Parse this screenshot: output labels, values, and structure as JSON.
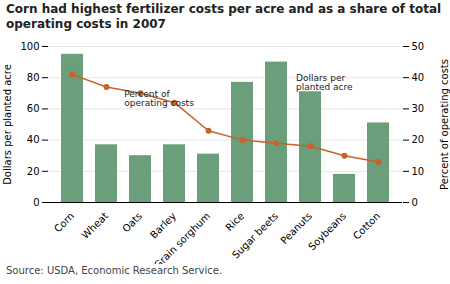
{
  "chart_data": {
    "type": "bar",
    "title": "Corn had highest fertilizer costs per acre and as a share of total\noperating costs in 2007",
    "caption": "Source:  USDA, Economic Research Service.",
    "categories": [
      "Corn",
      "Wheat",
      "Oats",
      "Barley",
      "Grain sorghum",
      "Rice",
      "Sugar beets",
      "Peanuts",
      "Soybeans",
      "Cotton"
    ],
    "series": [
      {
        "type": "bar",
        "color": "#6b9e7a",
        "values": [
          95,
          37,
          30,
          37,
          31,
          77,
          90,
          71,
          18,
          51
        ]
      },
      {
        "type": "line",
        "color": "#c8622a",
        "marker": "o",
        "axis": "y2",
        "values": [
          41,
          37,
          35,
          32,
          23,
          20,
          19,
          18,
          15,
          13
        ]
      }
    ],
    "ylabel": "Dollars per planted acre",
    "y2label": "Percent of operating costs",
    "ylim": [
      0,
      100
    ],
    "yticks": [
      0,
      20,
      40,
      60,
      80,
      100
    ],
    "y2lim": [
      0,
      50
    ],
    "y2ticks": [
      0,
      10,
      20,
      30,
      40,
      50
    ],
    "grid": true,
    "annotations": [
      "Percent of\noperating costs",
      "Dollars per\nplanted acre"
    ]
  }
}
